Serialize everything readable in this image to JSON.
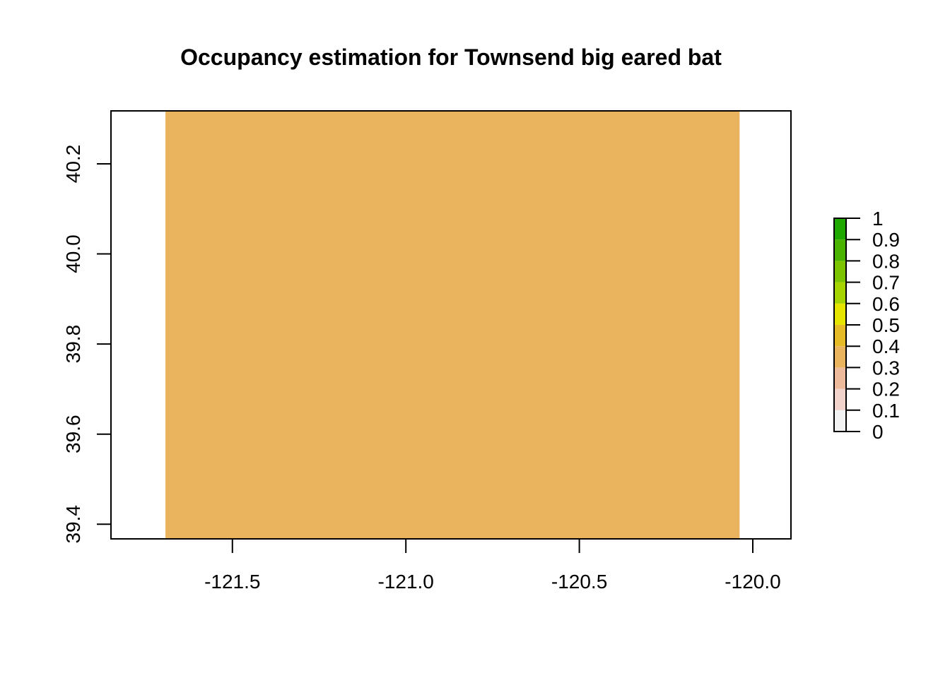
{
  "chart_data": {
    "type": "heatmap",
    "title": "Occupancy estimation for Townsend big eared bat",
    "xlabel": "",
    "ylabel": "",
    "xlim": [
      -121.85,
      -119.89
    ],
    "ylim": [
      39.3675,
      40.3175
    ],
    "x_ticks": [
      -121.5,
      -121.0,
      -120.5,
      -120.0
    ],
    "x_tick_labels": [
      "-121.5",
      "-121.0",
      "-120.5",
      "-120.0"
    ],
    "y_ticks": [
      39.4,
      39.6,
      39.8,
      40.0,
      40.2
    ],
    "y_tick_labels": [
      "39.4",
      "39.6",
      "39.8",
      "40.0",
      "40.2"
    ],
    "raster": {
      "x_extent": [
        -121.693,
        -120.038
      ],
      "y_extent": [
        39.3675,
        40.3175
      ],
      "value": 0.35,
      "color": "#EAB35E"
    },
    "legend": {
      "placement": "right",
      "breaks": [
        0,
        0.1,
        0.2,
        0.3,
        0.4,
        0.5,
        0.6,
        0.7,
        0.8,
        0.9,
        1
      ],
      "break_labels": [
        "0",
        "0.1",
        "0.2",
        "0.3",
        "0.4",
        "0.5",
        "0.6",
        "0.7",
        "0.8",
        "0.9",
        "1"
      ],
      "colors": [
        "#F2F2F2",
        "#F1D3CC",
        "#EDBA9B",
        "#EAB35E",
        "#E5BC27",
        "#E5E500",
        "#A6D400",
        "#7CC400",
        "#4AB300",
        "#1FA900",
        "#00A600"
      ]
    },
    "grid": false
  }
}
